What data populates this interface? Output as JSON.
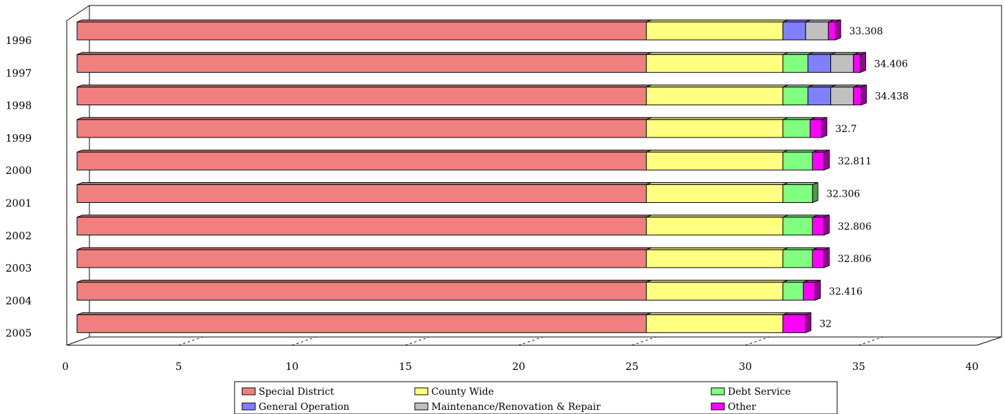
{
  "chart_data": {
    "type": "bar",
    "orientation": "horizontal",
    "stacked": true,
    "three_d": true,
    "categories": [
      "1996",
      "1997",
      "1998",
      "1999",
      "2000",
      "2001",
      "2002",
      "2003",
      "2004",
      "2005"
    ],
    "series": [
      {
        "name": "Special District",
        "color": "#f08080",
        "values": [
          25.0,
          25.0,
          25.0,
          25.0,
          25.0,
          25.0,
          25.0,
          25.0,
          25.0,
          25.0
        ]
      },
      {
        "name": "County Wide",
        "color": "#ffff80",
        "values": [
          6.0,
          6.0,
          6.0,
          6.0,
          6.0,
          6.0,
          6.0,
          6.0,
          6.0,
          6.0
        ]
      },
      {
        "name": "Debt Service",
        "color": "#80ff80",
        "values": [
          0.0,
          1.1,
          1.1,
          1.2,
          1.3,
          1.306,
          1.3,
          1.3,
          0.9,
          0.0
        ]
      },
      {
        "name": "General Operation",
        "color": "#8080ff",
        "values": [
          1.0,
          1.0,
          1.0,
          0.0,
          0.0,
          0.0,
          0.0,
          0.0,
          0.0,
          0.0
        ]
      },
      {
        "name": "Maintenance/Renovation & Repair",
        "color": "#c0c0c0",
        "values": [
          1.0,
          1.0,
          1.0,
          0.0,
          0.0,
          0.0,
          0.0,
          0.0,
          0.0,
          0.0
        ]
      },
      {
        "name": "Other",
        "color": "#ff00ff",
        "values": [
          0.308,
          0.306,
          0.338,
          0.5,
          0.511,
          0.0,
          0.506,
          0.506,
          0.516,
          1.0
        ]
      }
    ],
    "totals": [
      "33.308",
      "34.406",
      "34.438",
      "32.7",
      "32.811",
      "32.306",
      "32.806",
      "32.806",
      "32.416",
      "32"
    ],
    "x_ticks": [
      "0",
      "5",
      "10",
      "15",
      "20",
      "25",
      "30",
      "35",
      "40"
    ],
    "xlim": [
      0,
      40
    ],
    "xlabel": "",
    "ylabel": "",
    "title": "",
    "gridlines": "vertical dashed",
    "legend_position": "bottom"
  }
}
